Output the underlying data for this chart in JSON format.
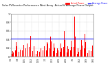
{
  "title": "Solar PV/Inverter Performance West Array  Actual & Average Power Output",
  "title_color": "#000000",
  "legend_actual": "Actual Power",
  "legend_actual_color": "#ff0000",
  "legend_average": "Average Power",
  "legend_average_color": "#0000ff",
  "background_color": "#ffffff",
  "plot_bg_color": "#ffffff",
  "grid_color": "#aaaaaa",
  "bar_color": "#ff0000",
  "avg_line_color": "#0000ff",
  "avg_line_value": 0.42,
  "ylim": [
    0.0,
    1.0
  ],
  "n_bars": 288,
  "xtick_labels": [
    "1/1",
    "1/8",
    "1/15",
    "1/22",
    "1/29",
    "2/5",
    "2/12",
    "2/19",
    "2/26",
    "3/5",
    "3/12",
    "3/19",
    "3/26"
  ],
  "ytick_labels": [
    "0",
    "0.2",
    "0.4",
    "0.6",
    "0.8",
    "1"
  ],
  "ytick_values": [
    0.0,
    0.2,
    0.4,
    0.6,
    0.8,
    1.0
  ]
}
